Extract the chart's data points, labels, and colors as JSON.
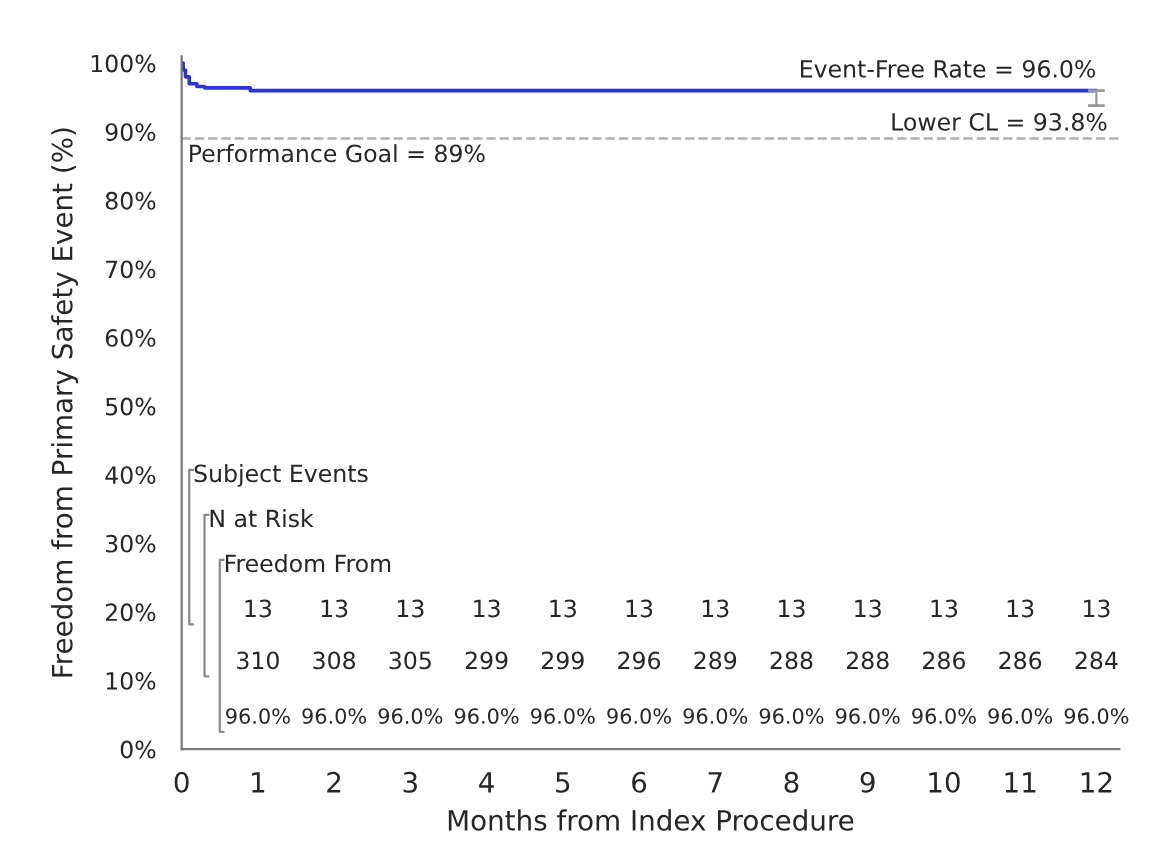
{
  "chart_data": {
    "type": "step",
    "xlabel": "Months from Index Procedure",
    "ylabel": "Freedom from Primary Safety Event (%)",
    "series": [
      {
        "color": "#2a35d8",
        "x": [
          0,
          0.02,
          0.05,
          0.1,
          0.2,
          0.3,
          0.9,
          12
        ],
        "values": [
          100,
          99,
          98,
          97,
          96.6,
          96.4,
          96.0,
          96.0
        ],
        "errors": [
          null,
          null,
          null,
          null,
          null,
          null,
          null,
          [
            93.8,
            96.0
          ]
        ]
      }
    ],
    "xlim": [
      0,
      12.3
    ],
    "xticks": [
      0,
      1,
      2,
      3,
      4,
      5,
      6,
      7,
      8,
      9,
      10,
      11,
      12
    ],
    "ylim": [
      0,
      101
    ],
    "yticks": [
      {
        "value": 0,
        "label": "0%"
      },
      {
        "value": 10,
        "label": "10%"
      },
      {
        "value": 20,
        "label": "20%"
      },
      {
        "value": 30,
        "label": "30%"
      },
      {
        "value": 40,
        "label": "40%"
      },
      {
        "value": 50,
        "label": "50%"
      },
      {
        "value": 60,
        "label": "60%"
      },
      {
        "value": 70,
        "label": "70%"
      },
      {
        "value": 80,
        "label": "80%"
      },
      {
        "value": 90,
        "label": "90%"
      },
      {
        "value": 100,
        "label": "100%"
      }
    ],
    "ref_lines": [
      {
        "axis": "y",
        "value": 89,
        "label": "Performance Goal = 89%",
        "color": "#b0b0b0",
        "line_style": "dashed"
      }
    ],
    "grid": false,
    "legend": false,
    "marker": "none",
    "line_style": "solid",
    "annotations": [
      {
        "text": "Event-Free Rate = 96.0%",
        "x": 12,
        "y": 96.0
      },
      {
        "text": "Lower CL = 93.8%",
        "x": 12,
        "y": 93.8
      },
      "Subject Events",
      "N at Risk",
      "Freedom From",
      "13",
      "13",
      "13",
      "13",
      "13",
      "13",
      "13",
      "13",
      "13",
      "13",
      "13",
      "13",
      "310",
      "308",
      "305",
      "299",
      "299",
      "296",
      "289",
      "288",
      "288",
      "286",
      "286",
      "284",
      "96.0%",
      "96.0%",
      "96.0%",
      "96.0%",
      "96.0%",
      "96.0%",
      "96.0%",
      "96.0%",
      "96.0%",
      "96.0%",
      "96.0%",
      "96.0%"
    ]
  }
}
